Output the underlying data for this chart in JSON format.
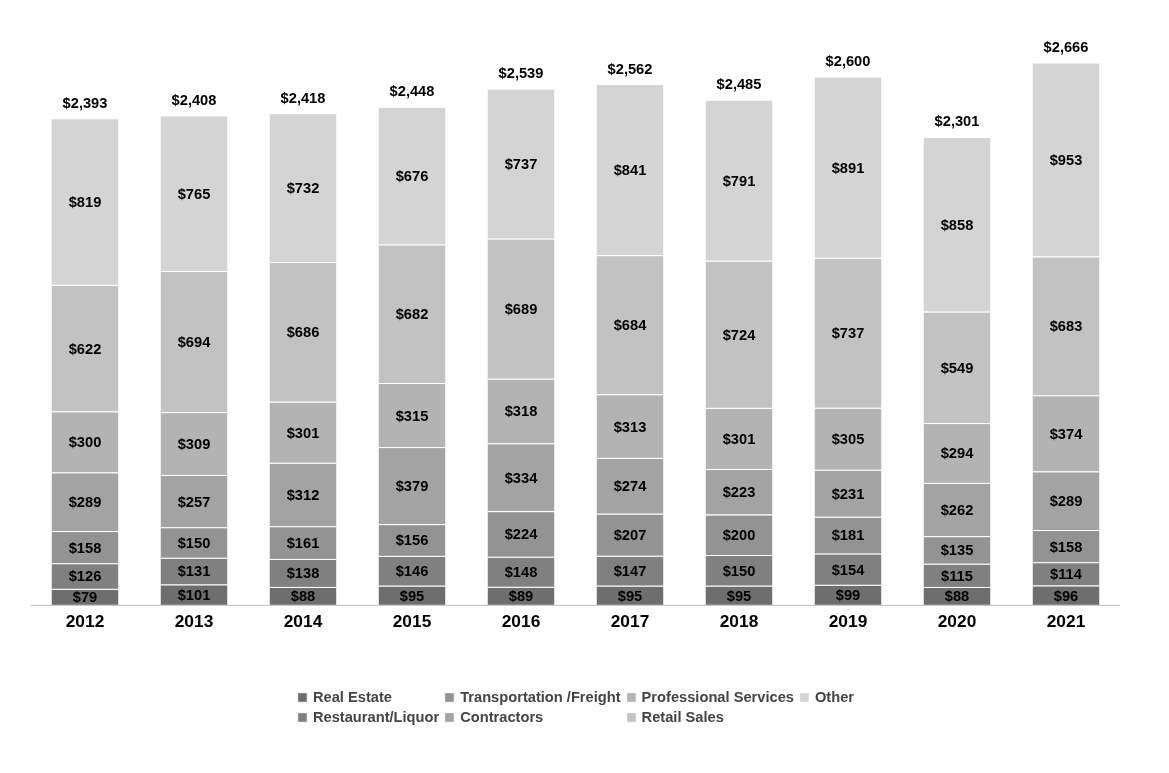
{
  "chart_data": {
    "type": "bar",
    "stacked": true,
    "legend": "bottom",
    "categories": [
      "2012",
      "2013",
      "2014",
      "2015",
      "2016",
      "2017",
      "2018",
      "2019",
      "2020",
      "2021"
    ],
    "series": [
      {
        "name": "Real Estate",
        "color": "#6e6e6e",
        "values": [
          79,
          101,
          88,
          95,
          89,
          95,
          95,
          99,
          88,
          96
        ],
        "value_labels": [
          "$79",
          "$101",
          "$88",
          "$95",
          "$89",
          "$95",
          "$95",
          "$99",
          "$88",
          "$96"
        ]
      },
      {
        "name": "Restaurant/Liquor",
        "color": "#808080",
        "values": [
          126,
          131,
          138,
          146,
          148,
          147,
          150,
          154,
          115,
          114
        ],
        "value_labels": [
          "$126",
          "$131",
          "$138",
          "$146",
          "$148",
          "$147",
          "$150",
          "$154",
          "$115",
          "$114"
        ]
      },
      {
        "name": "Transportation /Freight",
        "color": "#939393",
        "values": [
          158,
          150,
          161,
          156,
          224,
          207,
          200,
          181,
          135,
          158
        ],
        "value_labels": [
          "$158",
          "$150",
          "$161",
          "$156",
          "$224",
          "$207",
          "$200",
          "$181",
          "$135",
          "$158"
        ]
      },
      {
        "name": "Contractors",
        "color": "#a3a3a3",
        "values": [
          289,
          257,
          312,
          379,
          334,
          274,
          223,
          231,
          262,
          289
        ],
        "value_labels": [
          "$289",
          "$257",
          "$312",
          "$379",
          "$334",
          "$274",
          "$223",
          "$231",
          "$262",
          "$289"
        ]
      },
      {
        "name": "Professional Services",
        "color": "#b3b3b3",
        "values": [
          300,
          309,
          301,
          315,
          318,
          313,
          301,
          305,
          294,
          374
        ],
        "value_labels": [
          "$300",
          "$309",
          "$301",
          "$315",
          "$318",
          "$313",
          "$301",
          "$305",
          "$294",
          "$374"
        ]
      },
      {
        "name": "Retail Sales",
        "color": "#c2c2c2",
        "values": [
          622,
          694,
          686,
          682,
          689,
          684,
          724,
          737,
          549,
          683
        ],
        "value_labels": [
          "$622",
          "$694",
          "$686",
          "$682",
          "$689",
          "$684",
          "$724",
          "$737",
          "$549",
          "$683"
        ]
      },
      {
        "name": "Other",
        "color": "#d4d4d4",
        "values": [
          819,
          765,
          732,
          676,
          737,
          841,
          791,
          891,
          858,
          953
        ],
        "value_labels": [
          "$819",
          "$765",
          "$732",
          "$676",
          "$737",
          "$841",
          "$791",
          "$891",
          "$858",
          "$953"
        ]
      }
    ],
    "totals": [
      "$2,393",
      "$2,408",
      "$2,418",
      "$2,448",
      "$2,539",
      "$2,562",
      "$2,485",
      "$2,600",
      "$2,301",
      "$2,666"
    ]
  }
}
